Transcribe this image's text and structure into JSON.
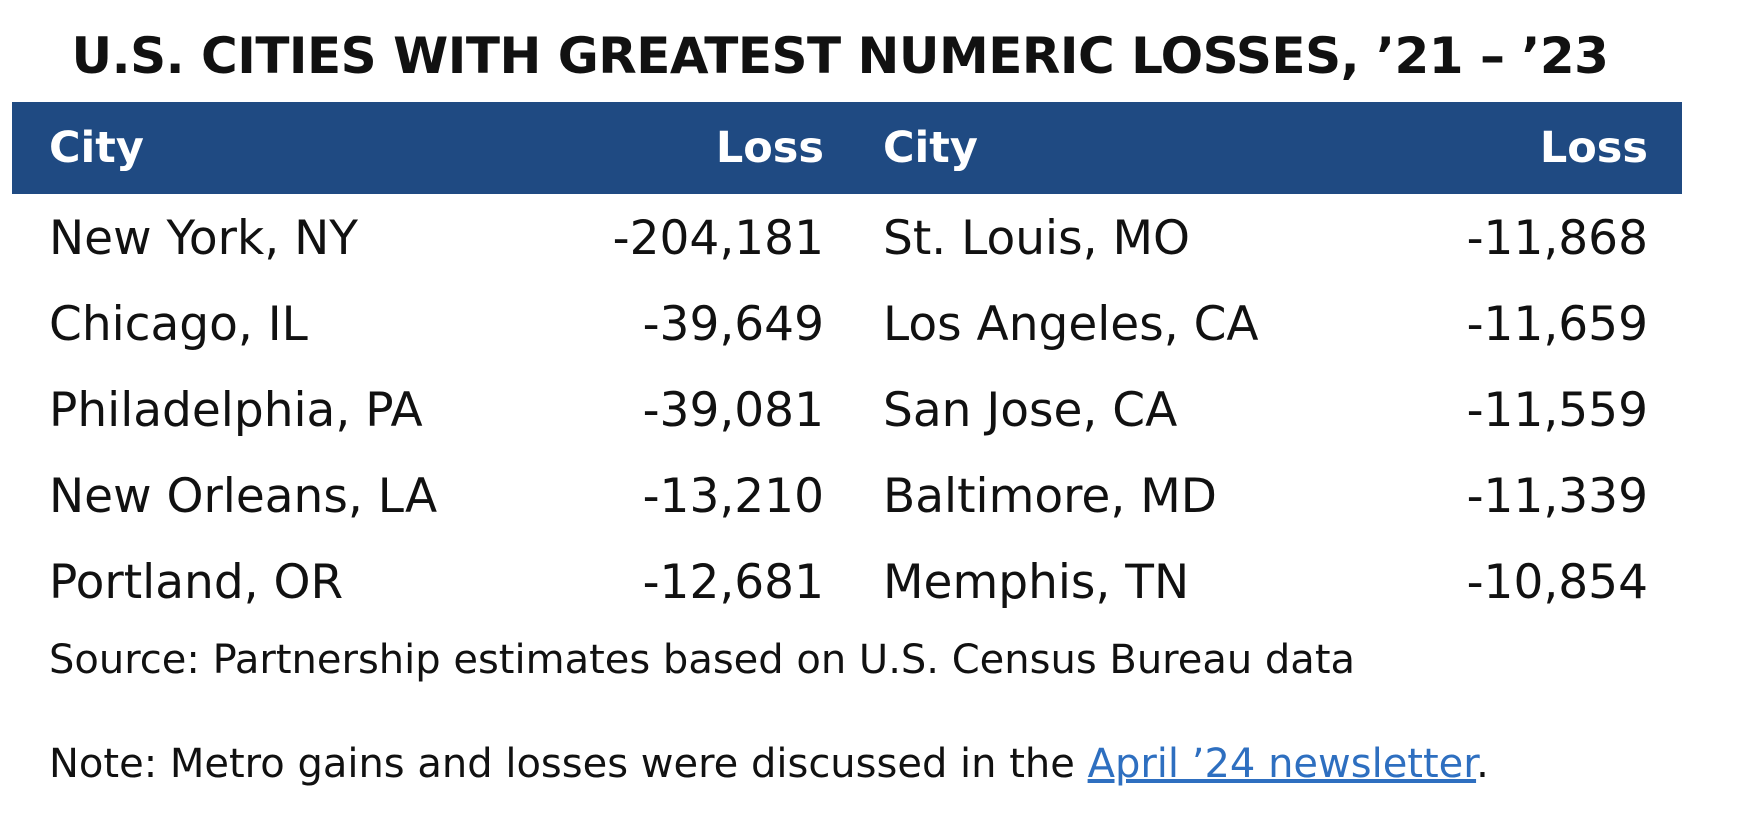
{
  "title": "U.S. CITIES WITH GREATEST NUMERIC LOSSES, ’21 – ’23",
  "table": {
    "headers": [
      "City",
      "Loss",
      "City",
      "Loss"
    ],
    "rows": [
      {
        "city_left": "New York, NY",
        "loss_left": "-204,181",
        "city_right": "St. Louis, MO",
        "loss_right": "-11,868"
      },
      {
        "city_left": "Chicago, IL",
        "loss_left": "-39,649",
        "city_right": "Los Angeles, CA",
        "loss_right": "-11,659"
      },
      {
        "city_left": "Philadelphia, PA",
        "loss_left": "-39,081",
        "city_right": "San Jose, CA",
        "loss_right": "-11,559"
      },
      {
        "city_left": "New Orleans, LA",
        "loss_left": "-13,210",
        "city_right": "Baltimore, MD",
        "loss_right": "-11,339"
      },
      {
        "city_left": "Portland, OR",
        "loss_left": "-12,681",
        "city_right": "Memphis, TN",
        "loss_right": "-10,854"
      }
    ]
  },
  "source": "Source: Partnership estimates based on U.S. Census Bureau data",
  "note": {
    "prefix": "Note: Metro gains and losses were discussed in the ",
    "link_text": "April ’24 newsletter",
    "suffix": "."
  },
  "colors": {
    "header_bg": "#1f4a82",
    "header_text": "#ffffff",
    "link": "#2e6fc0"
  }
}
